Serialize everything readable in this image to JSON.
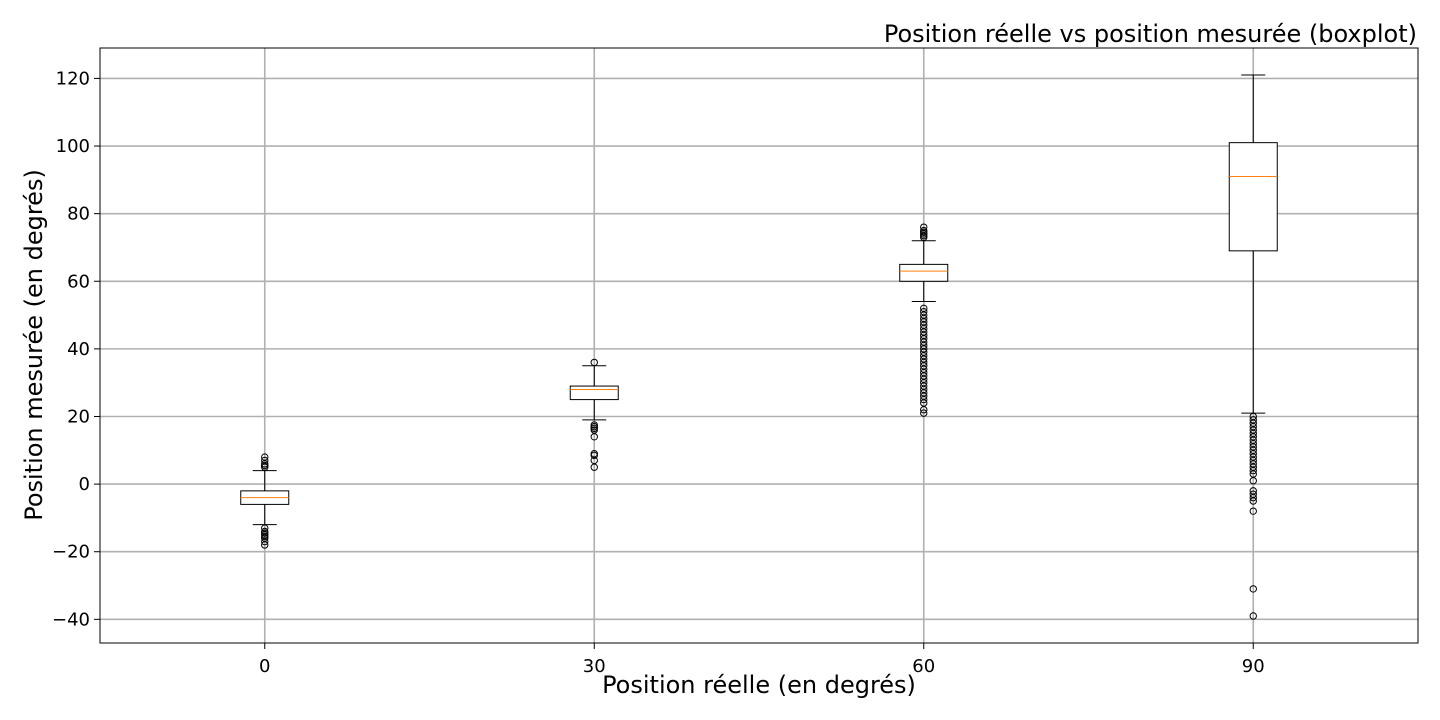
{
  "chart_data": {
    "type": "boxplot",
    "title": "Position réelle vs position mesurée (boxplot)",
    "xlabel": "Position réelle (en degrés)",
    "ylabel": "Position mesurée (en degrés)",
    "categories": [
      "0",
      "30",
      "60",
      "90"
    ],
    "x_positions": [
      0,
      30,
      60,
      90
    ],
    "xlim": [
      -15,
      105
    ],
    "ylim": [
      -47,
      129
    ],
    "yticks": [
      -40,
      -20,
      0,
      20,
      40,
      60,
      80,
      100,
      120
    ],
    "yticklabels": [
      "−40",
      "−20",
      "0",
      "20",
      "40",
      "60",
      "80",
      "100",
      "120"
    ],
    "grid": true,
    "boxes": [
      {
        "x": 0,
        "whisker_low": -12,
        "q1": -6,
        "median": -4,
        "q3": -2,
        "whisker_high": 4,
        "fliers": [
          5,
          5.5,
          6,
          7,
          8,
          -13,
          -14,
          -14.5,
          -15,
          -15.5,
          -16,
          -17,
          -18
        ]
      },
      {
        "x": 30,
        "whisker_low": 19,
        "q1": 25,
        "median": 28,
        "q3": 29,
        "whisker_high": 35,
        "fliers": [
          36,
          17.5,
          17,
          16.5,
          16,
          14,
          9,
          8.5,
          7,
          5
        ]
      },
      {
        "x": 60,
        "whisker_low": 54,
        "q1": 60,
        "median": 63,
        "q3": 65,
        "whisker_high": 72,
        "fliers": [
          73,
          73.5,
          74,
          74.5,
          75,
          76,
          52,
          51,
          50,
          49,
          48,
          47,
          46,
          45,
          44,
          43,
          42,
          41,
          40,
          39,
          38,
          37,
          36,
          35,
          34,
          33,
          32,
          31,
          30,
          29,
          28,
          27,
          26,
          25,
          24,
          22,
          21
        ]
      },
      {
        "x": 90,
        "whisker_low": 21,
        "q1": 69,
        "median": 91,
        "q3": 101,
        "whisker_high": 121,
        "fliers": [
          20,
          19,
          18,
          17,
          16,
          15,
          14,
          13,
          12,
          11,
          10,
          9,
          8,
          7,
          6,
          5,
          4,
          3,
          1,
          -2,
          -3,
          -4,
          -5,
          -8,
          -31,
          -39
        ]
      }
    ],
    "colors": {
      "box": "#000000",
      "median": "#ff7f0e",
      "grid": "#b0b0b0",
      "flier_face": "#ffffff"
    }
  }
}
